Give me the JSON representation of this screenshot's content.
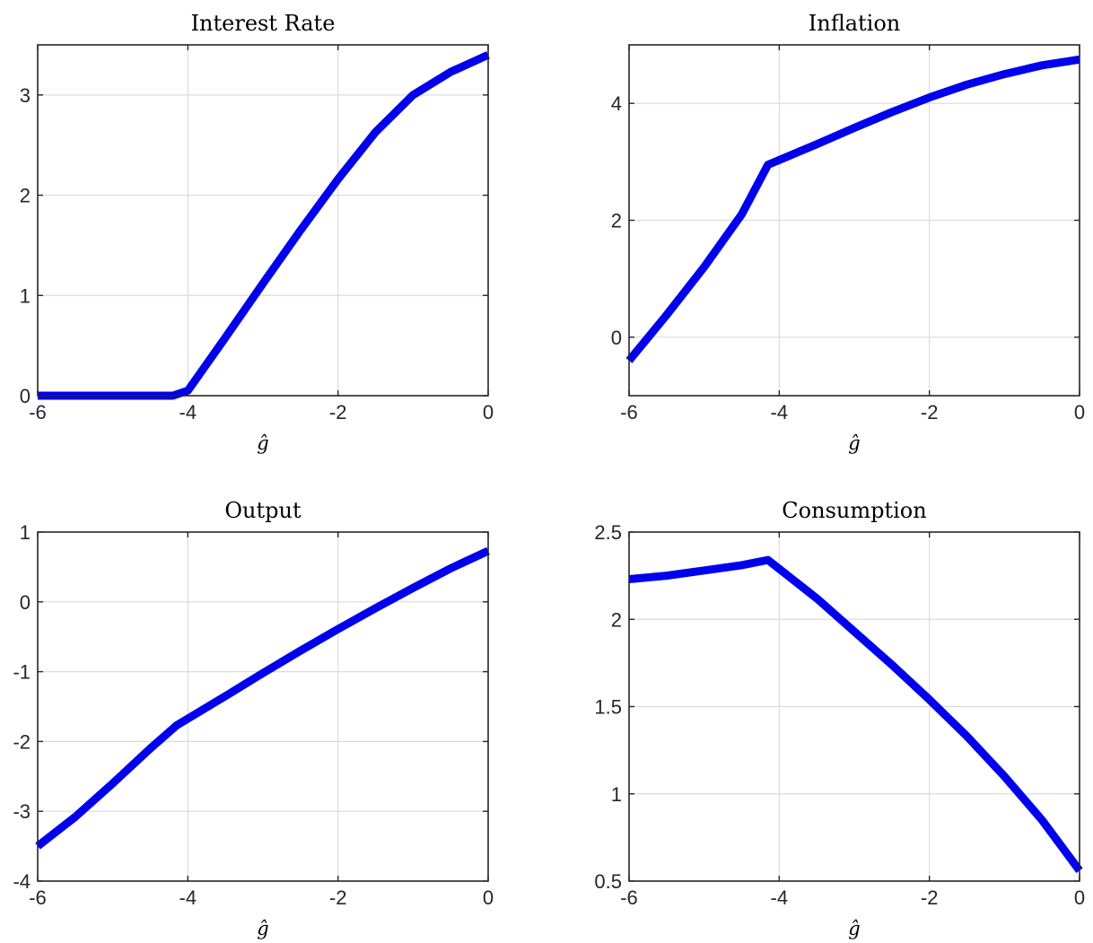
{
  "chart_data": [
    {
      "type": "line",
      "title": "Interest Rate",
      "xlabel": "ĝ",
      "ylabel": "",
      "xlim": [
        -6,
        0
      ],
      "ylim": [
        0,
        3.5
      ],
      "xticks": [
        -6,
        -4,
        -2,
        0
      ],
      "xtick_labels": [
        "-6",
        "-4",
        "-2",
        "0"
      ],
      "yticks": [
        0,
        1,
        2,
        3
      ],
      "ytick_labels": [
        "0",
        "1",
        "2",
        "3"
      ],
      "grid": true,
      "series": [
        {
          "color": "#0000ee",
          "x": [
            -6,
            -5,
            -4.2,
            -4.0,
            -3.5,
            -3.0,
            -2.5,
            -2.0,
            -1.5,
            -1.0,
            -0.5,
            0
          ],
          "y": [
            0,
            0,
            0,
            0.05,
            0.58,
            1.12,
            1.65,
            2.16,
            2.63,
            3.0,
            3.23,
            3.4
          ]
        }
      ]
    },
    {
      "type": "line",
      "title": "Inflation",
      "xlabel": "ĝ",
      "ylabel": "",
      "xlim": [
        -6,
        0
      ],
      "ylim": [
        -1,
        5
      ],
      "xticks": [
        -6,
        -4,
        -2,
        0
      ],
      "xtick_labels": [
        "-6",
        "-4",
        "-2",
        "0"
      ],
      "yticks": [
        0,
        2,
        4
      ],
      "ytick_labels": [
        "0",
        "2",
        "4"
      ],
      "grid": true,
      "series": [
        {
          "color": "#0000ee",
          "x": [
            -6,
            -5.5,
            -5.0,
            -4.5,
            -4.15,
            -3.5,
            -3.0,
            -2.5,
            -2.0,
            -1.5,
            -1.0,
            -0.5,
            0
          ],
          "y": [
            -0.4,
            0.38,
            1.2,
            2.1,
            2.95,
            3.3,
            3.58,
            3.85,
            4.1,
            4.32,
            4.5,
            4.65,
            4.75
          ]
        }
      ]
    },
    {
      "type": "line",
      "title": "Output",
      "xlabel": "ĝ",
      "ylabel": "",
      "xlim": [
        -6,
        0
      ],
      "ylim": [
        -4,
        1
      ],
      "xticks": [
        -6,
        -4,
        -2,
        0
      ],
      "xtick_labels": [
        "-6",
        "-4",
        "-2",
        "0"
      ],
      "yticks": [
        -4,
        -3,
        -2,
        -1,
        0,
        1
      ],
      "ytick_labels": [
        "-4",
        "-3",
        "-2",
        "-1",
        "0",
        "1"
      ],
      "grid": true,
      "series": [
        {
          "color": "#0000ee",
          "x": [
            -6,
            -5.5,
            -5.0,
            -4.5,
            -4.15,
            -3.5,
            -3.0,
            -2.5,
            -2.0,
            -1.5,
            -1.0,
            -0.5,
            0
          ],
          "y": [
            -3.5,
            -3.08,
            -2.6,
            -2.1,
            -1.77,
            -1.35,
            -1.02,
            -0.7,
            -0.39,
            -0.09,
            0.2,
            0.48,
            0.73
          ]
        }
      ]
    },
    {
      "type": "line",
      "title": "Consumption",
      "xlabel": "ĝ",
      "ylabel": "",
      "xlim": [
        -6,
        0
      ],
      "ylim": [
        0.5,
        2.5
      ],
      "xticks": [
        -6,
        -4,
        -2,
        0
      ],
      "xtick_labels": [
        "-6",
        "-4",
        "-2",
        "0"
      ],
      "yticks": [
        0.5,
        1,
        1.5,
        2,
        2.5
      ],
      "ytick_labels": [
        "0.5",
        "1",
        "1.5",
        "2",
        "2.5"
      ],
      "grid": true,
      "series": [
        {
          "color": "#0000ee",
          "x": [
            -6,
            -5.5,
            -5.0,
            -4.5,
            -4.15,
            -3.5,
            -3.0,
            -2.5,
            -2.0,
            -1.5,
            -1.0,
            -0.5,
            0
          ],
          "y": [
            2.23,
            2.25,
            2.28,
            2.31,
            2.34,
            2.12,
            1.93,
            1.74,
            1.54,
            1.33,
            1.1,
            0.85,
            0.56
          ]
        }
      ]
    }
  ]
}
